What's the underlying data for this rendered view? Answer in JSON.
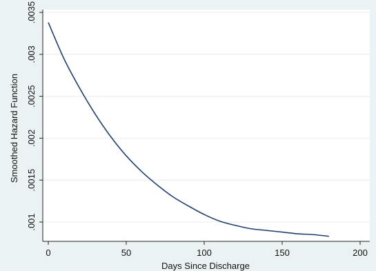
{
  "chart_data": {
    "type": "line",
    "title": "",
    "xlabel": "Days Since Discharge",
    "ylabel": "Smoothed Hazard Function",
    "xlim": [
      0,
      200
    ],
    "ylim": [
      0.00082,
      0.0035
    ],
    "xticks": [
      0,
      50,
      100,
      150,
      200
    ],
    "xtick_labels": [
      "0",
      "50",
      "100",
      "150",
      "200"
    ],
    "yticks": [
      0.001,
      0.0015,
      0.002,
      0.0025,
      0.003,
      0.0035
    ],
    "ytick_labels": [
      ".001",
      ".0015",
      ".002",
      ".0025",
      ".003",
      ".0035"
    ],
    "grid": true,
    "legend": "none",
    "line_color": "#1f3f6e",
    "series": [
      {
        "x": [
          0,
          10,
          20,
          30,
          40,
          50,
          60,
          70,
          80,
          90,
          100,
          110,
          120,
          130,
          140,
          150,
          160,
          170,
          180
        ],
        "values": [
          0.00338,
          0.00295,
          0.0026,
          0.00229,
          0.00202,
          0.00179,
          0.0016,
          0.00144,
          0.0013,
          0.00119,
          0.00109,
          0.00101,
          0.00096,
          0.00092,
          0.0009,
          0.00088,
          0.00086,
          0.00085,
          0.00083
        ]
      }
    ]
  }
}
